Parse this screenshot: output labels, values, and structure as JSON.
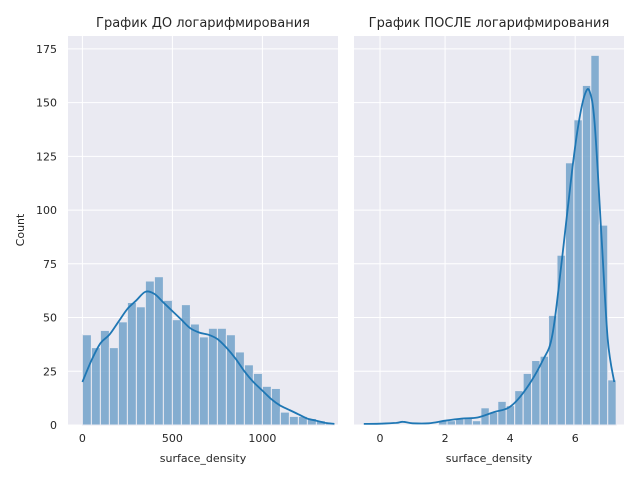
{
  "chart_data": [
    {
      "type": "bar",
      "title": "График ДО логарифмирования",
      "xlabel": "surface_density",
      "ylabel": "Count",
      "xlim": [
        -80,
        1420
      ],
      "ylim": [
        0,
        181
      ],
      "xticks": [
        0,
        500,
        1000
      ],
      "yticks": [
        0,
        25,
        50,
        75,
        100,
        125,
        150,
        175
      ],
      "bin_edges": [
        0,
        50,
        100,
        150,
        200,
        250,
        300,
        350,
        400,
        450,
        500,
        550,
        600,
        650,
        700,
        750,
        800,
        850,
        900,
        950,
        1000,
        1050,
        1100,
        1150,
        1200,
        1250,
        1300,
        1350,
        1400
      ],
      "values": [
        42,
        36,
        44,
        36,
        48,
        57,
        55,
        67,
        69,
        58,
        49,
        56,
        47,
        41,
        45,
        45,
        42,
        34,
        28,
        24,
        18,
        17,
        6,
        4,
        4,
        3,
        2,
        1
      ],
      "kde": {
        "x": [
          0,
          50,
          100,
          150,
          200,
          250,
          300,
          350,
          400,
          450,
          500,
          550,
          600,
          650,
          700,
          750,
          800,
          850,
          900,
          950,
          1000,
          1050,
          1100,
          1150,
          1200,
          1250,
          1300,
          1350,
          1400
        ],
        "y": [
          20,
          30,
          38,
          42,
          48,
          54,
          58,
          62,
          61,
          57,
          53,
          49,
          45,
          43,
          42,
          40,
          36,
          31,
          25,
          20,
          16,
          12,
          9,
          7,
          5,
          3,
          2,
          1,
          0.5
        ]
      },
      "bar_color": "#6a9ec7",
      "line_color": "#1f77b4"
    },
    {
      "type": "bar",
      "title": "График ПОСЛЕ логарифмирования",
      "xlabel": "surface_density",
      "ylabel": "",
      "xlim": [
        -0.8,
        7.5
      ],
      "ylim": [
        0,
        181
      ],
      "xticks": [
        0,
        2,
        4,
        6
      ],
      "yticks": [
        0,
        25,
        50,
        75,
        100,
        125,
        150,
        175
      ],
      "bin_edges": [
        1.8,
        2.06,
        2.32,
        2.58,
        2.84,
        3.1,
        3.36,
        3.62,
        3.88,
        4.14,
        4.4,
        4.66,
        4.92,
        5.18,
        5.44,
        5.7,
        5.96,
        6.22,
        6.48,
        6.74,
        7.0,
        7.26
      ],
      "values": [
        2,
        2,
        3,
        3,
        2,
        8,
        6,
        11,
        9,
        16,
        24,
        30,
        32,
        51,
        79,
        122,
        142,
        158,
        172,
        93,
        21
      ],
      "kde": {
        "x": [
          -0.5,
          0,
          0.5,
          0.7,
          1,
          1.5,
          2,
          2.5,
          3,
          3.5,
          4,
          4.5,
          5,
          5.3,
          5.6,
          5.9,
          6.1,
          6.3,
          6.45,
          6.6,
          6.8,
          7.0,
          7.2
        ],
        "y": [
          0.5,
          0.6,
          1.0,
          1.5,
          0.8,
          0.8,
          2,
          3,
          3.5,
          6,
          8.5,
          17,
          30,
          42,
          78,
          118,
          140,
          154,
          155,
          140,
          90,
          40,
          20
        ]
      },
      "bar_color": "#6a9ec7",
      "line_color": "#1f77b4"
    }
  ]
}
